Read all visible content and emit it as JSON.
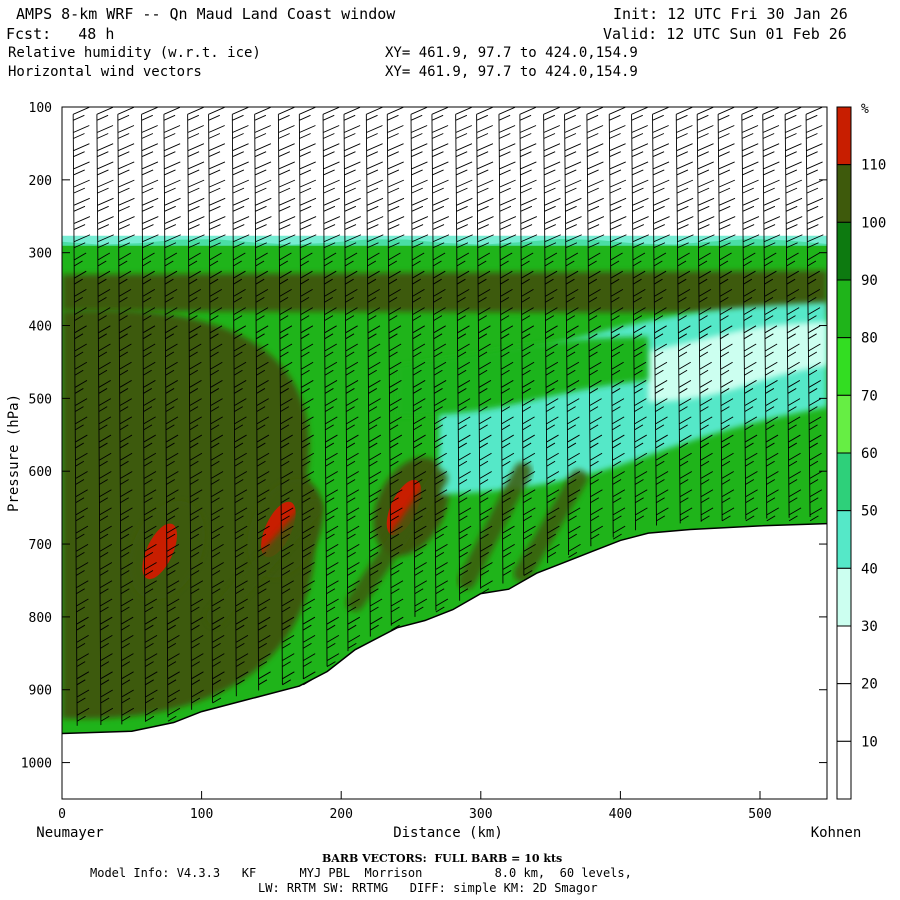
{
  "header": {
    "title": "AMPS 8-km WRF -- Qn Maud Land Coast window",
    "init": "Init: 12 UTC Fri 30 Jan 26",
    "fcst": "Fcst:   48 h",
    "valid": "Valid: 12 UTC Sun 01 Feb 26",
    "field1": "Relative humidity (w.r.t. ice)",
    "field1_xy": "XY= 461.9, 97.7 to 424.0,154.9",
    "field2": "Horizontal wind vectors",
    "field2_xy": "XY= 461.9, 97.7 to 424.0,154.9"
  },
  "footer": {
    "barb": "BARB VECTORS:  FULL BARB = 10 kts",
    "model_info": "Model Info: V4.3.3   KF      MYJ PBL  Morrison          8.0 km,  60 levels,",
    "physics": "LW: RRTM SW: RRTMG   DIFF: simple KM: 2D Smagor"
  },
  "chart_data": {
    "type": "heatmap",
    "xlabel": "Distance (km)",
    "ylabel": "Pressure (hPa)",
    "x_start_label": "Neumayer",
    "x_end_label": "Kohnen",
    "xlim": [
      0,
      548
    ],
    "ylim": [
      1050,
      100
    ],
    "x_ticks": [
      0,
      100,
      200,
      300,
      400,
      500
    ],
    "y_ticks": [
      100,
      200,
      300,
      400,
      500,
      600,
      700,
      800,
      900,
      1000
    ],
    "colorbar": {
      "unit": "%",
      "levels": [
        10,
        20,
        30,
        40,
        50,
        60,
        70,
        80,
        90,
        100,
        110
      ],
      "colors": [
        "#ffffff",
        "#ffffff",
        "#ffffff",
        "#ccfff0",
        "#55e8c8",
        "#2ed07a",
        "#66ee44",
        "#33dd22",
        "#1fb41a",
        "#0d7a10",
        "#3e5a0c",
        "#c81e00"
      ]
    },
    "terrain_surface": [
      [
        0,
        960
      ],
      [
        50,
        957
      ],
      [
        80,
        945
      ],
      [
        100,
        930
      ],
      [
        130,
        915
      ],
      [
        170,
        895
      ],
      [
        190,
        875
      ],
      [
        210,
        845
      ],
      [
        240,
        815
      ],
      [
        260,
        805
      ],
      [
        280,
        790
      ],
      [
        300,
        768
      ],
      [
        320,
        762
      ],
      [
        340,
        740
      ],
      [
        360,
        725
      ],
      [
        380,
        710
      ],
      [
        400,
        695
      ],
      [
        420,
        685
      ],
      [
        450,
        680
      ],
      [
        500,
        675
      ],
      [
        548,
        672
      ]
    ],
    "moist_layer_top_hpa": 285,
    "rh_regions": [
      {
        "level": 100,
        "shape": "layer",
        "x": [
          0,
          548
        ],
        "p": [
          330,
          380
        ]
      },
      {
        "level": 100,
        "shape": "region",
        "x": [
          0,
          190
        ],
        "p": [
          380,
          940
        ]
      },
      {
        "level": 110,
        "shape": "maximum",
        "x": 155,
        "p": 680
      },
      {
        "level": 110,
        "shape": "maximum",
        "x": 70,
        "p": 710
      },
      {
        "level": 110,
        "shape": "maximum",
        "x": 245,
        "p": 650
      },
      {
        "level": 40,
        "shape": "band",
        "x": [
          270,
          548
        ],
        "p": [
          380,
          620
        ]
      },
      {
        "level": 30,
        "shape": "band",
        "x": [
          420,
          548
        ],
        "p": [
          400,
          500
        ]
      },
      {
        "level": 80,
        "shape": "band",
        "x": [
          240,
          420
        ],
        "p": [
          420,
          520
        ]
      }
    ],
    "wind_barbs": {
      "columns_x_km": [
        8,
        25,
        40,
        57,
        73,
        90,
        105,
        122,
        138,
        155,
        170,
        187,
        202,
        218,
        233,
        250,
        265,
        282,
        297,
        313,
        328,
        345,
        360,
        376,
        392,
        408,
        423,
        440,
        455,
        470,
        487,
        502,
        518,
        533
      ],
      "level_spacing_hpa": 25,
      "full_barb_kts": 10
    }
  }
}
